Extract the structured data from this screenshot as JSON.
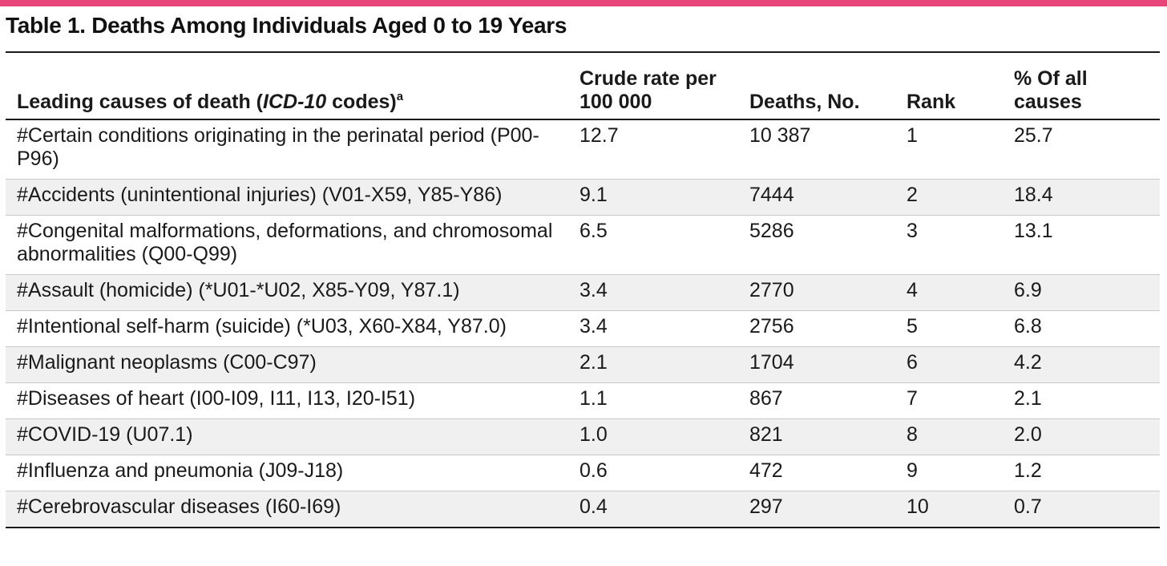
{
  "title": "Table 1. Deaths Among Individuals Aged 0 to 19 Years",
  "accent_color": "#e8457a",
  "zebra_color": "#f0f0f1",
  "headers": {
    "cause_prefix": "Leading causes of death (",
    "cause_italic": "ICD-10",
    "cause_suffix": " codes)",
    "cause_footnote": "a",
    "rate": "Crude rate per 100 000",
    "deaths": "Deaths, No.",
    "rank": "Rank",
    "pct": "% Of all causes"
  },
  "rows": [
    {
      "cause": "#Certain conditions originating in the perinatal period (P00-P96)",
      "rate": "12.7",
      "deaths": "10 387",
      "rank": "1",
      "pct": "25.7"
    },
    {
      "cause": "#Accidents (unintentional injuries) (V01-X59, Y85-Y86)",
      "rate": "9.1",
      "deaths": "7444",
      "rank": "2",
      "pct": "18.4"
    },
    {
      "cause": "#Congenital malformations, deformations, and chromosomal abnormalities (Q00-Q99)",
      "rate": "6.5",
      "deaths": "5286",
      "rank": "3",
      "pct": "13.1"
    },
    {
      "cause": "#Assault (homicide) (*U01-*U02, X85-Y09, Y87.1)",
      "rate": "3.4",
      "deaths": "2770",
      "rank": "4",
      "pct": "6.9"
    },
    {
      "cause": "#Intentional self-harm (suicide) (*U03, X60-X84, Y87.0)",
      "rate": "3.4",
      "deaths": "2756",
      "rank": "5",
      "pct": "6.8"
    },
    {
      "cause": "#Malignant neoplasms (C00-C97)",
      "rate": "2.1",
      "deaths": "1704",
      "rank": "6",
      "pct": "4.2"
    },
    {
      "cause": "#Diseases of heart (I00-I09, I11, I13, I20-I51)",
      "rate": "1.1",
      "deaths": "867",
      "rank": "7",
      "pct": "2.1"
    },
    {
      "cause": "#COVID-19 (U07.1)",
      "rate": "1.0",
      "deaths": "821",
      "rank": "8",
      "pct": "2.0"
    },
    {
      "cause": "#Influenza and pneumonia (J09-J18)",
      "rate": "0.6",
      "deaths": "472",
      "rank": "9",
      "pct": "1.2"
    },
    {
      "cause": "#Cerebrovascular diseases (I60-I69)",
      "rate": "0.4",
      "deaths": "297",
      "rank": "10",
      "pct": "0.7"
    }
  ]
}
